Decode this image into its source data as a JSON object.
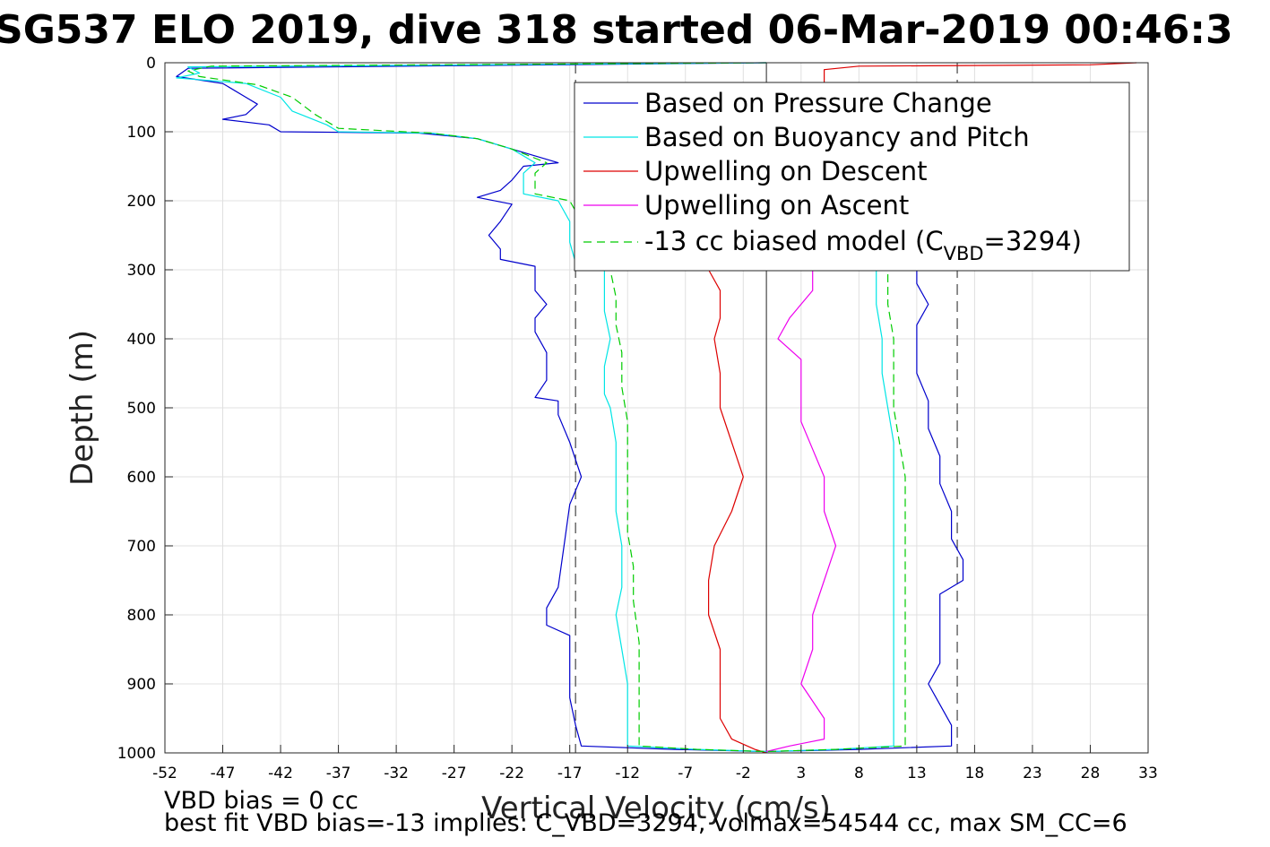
{
  "chart_data": {
    "type": "line",
    "title": "SG537 ELO 2019, dive 318 started 06-Mar-2019 00:46:3",
    "xlabel": "Vertical Velocity (cm/s)",
    "ylabel": "Depth (m)",
    "xlim": [
      -52,
      33
    ],
    "ylim": [
      0,
      1000
    ],
    "y_reversed": true,
    "x_ticks": [
      -52,
      -47,
      -42,
      -37,
      -32,
      -27,
      -22,
      -17,
      -12,
      -7,
      -2,
      3,
      8,
      13,
      18,
      23,
      28,
      33
    ],
    "y_ticks": [
      0,
      100,
      200,
      300,
      400,
      500,
      600,
      700,
      800,
      900,
      1000
    ],
    "grid": true,
    "legend_position": "top-right",
    "reference_lines": {
      "solid_x": 0,
      "dashed_x": [
        -16.5,
        16.5
      ]
    },
    "series": [
      {
        "name": "Based on Pressure Change",
        "color": "#0000cc",
        "style": "solid",
        "points": [
          [
            0,
            0
          ],
          [
            -50,
            8
          ],
          [
            -51,
            20
          ],
          [
            -47,
            30
          ],
          [
            -45,
            50
          ],
          [
            -44,
            60
          ],
          [
            -45,
            75
          ],
          [
            -47,
            82
          ],
          [
            -43,
            90
          ],
          [
            -42,
            100
          ],
          [
            -30,
            102
          ],
          [
            -25,
            110
          ],
          [
            -22,
            125
          ],
          [
            -18,
            145
          ],
          [
            -21,
            150
          ],
          [
            -22,
            170
          ],
          [
            -23,
            185
          ],
          [
            -25,
            195
          ],
          [
            -22,
            205
          ],
          [
            -23,
            230
          ],
          [
            -24,
            250
          ],
          [
            -23,
            270
          ],
          [
            -23,
            285
          ],
          [
            -20,
            295
          ],
          [
            -20,
            310
          ],
          [
            -20,
            330
          ],
          [
            -19,
            350
          ],
          [
            -20,
            370
          ],
          [
            -20,
            390
          ],
          [
            -19,
            420
          ],
          [
            -19,
            460
          ],
          [
            -20,
            485
          ],
          [
            -18,
            490
          ],
          [
            -18,
            510
          ],
          [
            -17,
            550
          ],
          [
            -16,
            600
          ],
          [
            -17,
            640
          ],
          [
            -17.5,
            700
          ],
          [
            -18,
            760
          ],
          [
            -19,
            790
          ],
          [
            -19,
            815
          ],
          [
            -17,
            830
          ],
          [
            -17,
            870
          ],
          [
            -17,
            920
          ],
          [
            -16.5,
            960
          ],
          [
            -16,
            990
          ],
          [
            -8,
            995
          ],
          [
            0,
            998
          ],
          [
            8,
            995
          ],
          [
            16,
            990
          ],
          [
            16,
            960
          ],
          [
            15,
            930
          ],
          [
            14,
            900
          ],
          [
            15,
            870
          ],
          [
            15,
            840
          ],
          [
            15,
            800
          ],
          [
            15,
            770
          ],
          [
            17,
            750
          ],
          [
            17,
            720
          ],
          [
            16,
            690
          ],
          [
            16,
            650
          ],
          [
            15,
            610
          ],
          [
            15,
            570
          ],
          [
            14,
            530
          ],
          [
            14,
            490
          ],
          [
            13,
            450
          ],
          [
            13,
            410
          ],
          [
            13,
            380
          ],
          [
            14,
            350
          ],
          [
            13,
            320
          ],
          [
            13,
            300
          ]
        ]
      },
      {
        "name": "Based on Buoyancy and Pitch",
        "color": "#00e5e5",
        "style": "solid",
        "points": [
          [
            0,
            0
          ],
          [
            -50,
            6
          ],
          [
            -49,
            15
          ],
          [
            -51,
            22
          ],
          [
            -45,
            30
          ],
          [
            -42,
            50
          ],
          [
            -41,
            70
          ],
          [
            -38,
            90
          ],
          [
            -37,
            100
          ],
          [
            -29,
            102
          ],
          [
            -25,
            110
          ],
          [
            -22,
            125
          ],
          [
            -20,
            145
          ],
          [
            -21,
            160
          ],
          [
            -21,
            190
          ],
          [
            -18,
            200
          ],
          [
            -17,
            230
          ],
          [
            -17,
            260
          ],
          [
            -16.5,
            290
          ],
          [
            -14,
            300
          ],
          [
            -14,
            330
          ],
          [
            -14,
            360
          ],
          [
            -13.5,
            400
          ],
          [
            -14,
            440
          ],
          [
            -14,
            480
          ],
          [
            -13.5,
            500
          ],
          [
            -13,
            550
          ],
          [
            -13,
            600
          ],
          [
            -13,
            650
          ],
          [
            -12.5,
            700
          ],
          [
            -12.5,
            760
          ],
          [
            -13,
            800
          ],
          [
            -12.5,
            850
          ],
          [
            -12,
            900
          ],
          [
            -12,
            950
          ],
          [
            -12,
            990
          ],
          [
            -6,
            995
          ],
          [
            0,
            998
          ],
          [
            6,
            995
          ],
          [
            11,
            990
          ],
          [
            11,
            950
          ],
          [
            11,
            900
          ],
          [
            11,
            850
          ],
          [
            11,
            800
          ],
          [
            11,
            770
          ],
          [
            11,
            740
          ],
          [
            11,
            700
          ],
          [
            11,
            650
          ],
          [
            11,
            600
          ],
          [
            11,
            550
          ],
          [
            10.5,
            500
          ],
          [
            10,
            450
          ],
          [
            10,
            400
          ],
          [
            9.5,
            350
          ],
          [
            9.5,
            300
          ]
        ]
      },
      {
        "name": "Upwelling on Descent",
        "color": "#dd0000",
        "style": "solid",
        "points": [
          [
            32,
            0
          ],
          [
            28,
            3
          ],
          [
            8,
            5
          ],
          [
            5,
            10
          ],
          [
            5,
            300
          ],
          [
            -5,
            300
          ],
          [
            -4,
            330
          ],
          [
            -4,
            370
          ],
          [
            -4.5,
            400
          ],
          [
            -4,
            450
          ],
          [
            -4,
            500
          ],
          [
            -3,
            550
          ],
          [
            -2,
            600
          ],
          [
            -3,
            650
          ],
          [
            -4.5,
            700
          ],
          [
            -5,
            750
          ],
          [
            -5,
            800
          ],
          [
            -4,
            850
          ],
          [
            -4,
            900
          ],
          [
            -4,
            950
          ],
          [
            -3,
            980
          ],
          [
            -1,
            995
          ],
          [
            0,
            1000
          ]
        ]
      },
      {
        "name": "Upwelling on Ascent",
        "color": "#ee00ee",
        "style": "solid",
        "points": [
          [
            4,
            300
          ],
          [
            4,
            330
          ],
          [
            2,
            370
          ],
          [
            1,
            400
          ],
          [
            3,
            430
          ],
          [
            3,
            480
          ],
          [
            3,
            520
          ],
          [
            4,
            560
          ],
          [
            5,
            600
          ],
          [
            5,
            650
          ],
          [
            6,
            700
          ],
          [
            5,
            750
          ],
          [
            4,
            800
          ],
          [
            4,
            850
          ],
          [
            3,
            900
          ],
          [
            5,
            950
          ],
          [
            5,
            980
          ],
          [
            2,
            990
          ],
          [
            0,
            998
          ]
        ]
      },
      {
        "name": "-13 cc biased model (C",
        "color": "#00cc00",
        "style": "dashed",
        "points": [
          [
            0,
            0
          ],
          [
            -48,
            5
          ],
          [
            -50,
            12
          ],
          [
            -49,
            20
          ],
          [
            -44,
            32
          ],
          [
            -41,
            50
          ],
          [
            -39,
            75
          ],
          [
            -37,
            95
          ],
          [
            -29,
            102
          ],
          [
            -25,
            110
          ],
          [
            -22,
            125
          ],
          [
            -19,
            145
          ],
          [
            -20,
            160
          ],
          [
            -20,
            190
          ],
          [
            -17,
            200
          ],
          [
            -16,
            230
          ],
          [
            -16.5,
            260
          ],
          [
            -16,
            290
          ],
          [
            -13.5,
            300
          ],
          [
            -13,
            340
          ],
          [
            -13,
            380
          ],
          [
            -12.5,
            420
          ],
          [
            -12.5,
            470
          ],
          [
            -12,
            520
          ],
          [
            -12,
            570
          ],
          [
            -12,
            620
          ],
          [
            -12,
            680
          ],
          [
            -11.5,
            730
          ],
          [
            -11.5,
            780
          ],
          [
            -11,
            840
          ],
          [
            -11,
            890
          ],
          [
            -11,
            940
          ],
          [
            -11,
            990
          ],
          [
            -6,
            995
          ],
          [
            0,
            998
          ],
          [
            6,
            995
          ],
          [
            12,
            990
          ],
          [
            12,
            950
          ],
          [
            12,
            900
          ],
          [
            12,
            850
          ],
          [
            12,
            800
          ],
          [
            12,
            770
          ],
          [
            12,
            740
          ],
          [
            12,
            700
          ],
          [
            12,
            650
          ],
          [
            12,
            600
          ],
          [
            11.5,
            550
          ],
          [
            11,
            500
          ],
          [
            11,
            450
          ],
          [
            11,
            400
          ],
          [
            10.5,
            350
          ],
          [
            10.5,
            300
          ]
        ]
      }
    ]
  },
  "legend": {
    "entries": [
      "Based on Pressure Change",
      "Based on Buoyancy and Pitch",
      "Upwelling on Descent",
      "Upwelling on Ascent"
    ],
    "model_prefix": "-13 cc biased model (C",
    "model_subscript": "VBD",
    "model_suffix": "=3294)"
  },
  "footer": {
    "line1": "VBD bias = 0 cc",
    "line2": "best fit VBD bias=-13 implies: C_VBD=3294, volmax=54544 cc, max SM_CC=6"
  },
  "colors": {
    "pressure": "#0000cc",
    "buoyancy": "#00e5e5",
    "descent": "#dd0000",
    "ascent": "#ee00ee",
    "model": "#00cc00",
    "grid": "#e0e0e0"
  }
}
